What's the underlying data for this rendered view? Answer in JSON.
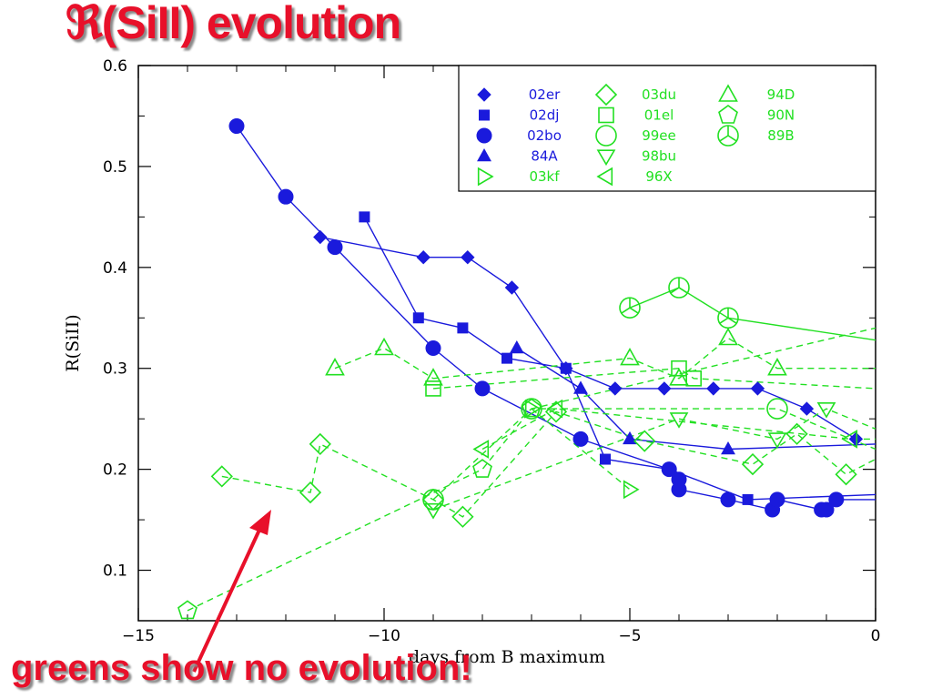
{
  "slide": {
    "title": "ℜ(SiII) evolution",
    "caption": "greens show no evolution!"
  },
  "colors": {
    "blue": "#1a1adc",
    "green": "#22e022",
    "annotation": "#e8102a"
  },
  "chart_data": {
    "type": "scatter",
    "xlabel": "days from B maximum",
    "ylabel": "R(SiII)",
    "xlim": [
      -15,
      0
    ],
    "ylim": [
      0.05,
      0.6
    ],
    "xticks": [
      -15,
      -10,
      -5,
      0
    ],
    "yticks": [
      0.1,
      0.2,
      0.3,
      0.4,
      0.5,
      0.6
    ],
    "grid": false,
    "legend_position": "top-right",
    "series": [
      {
        "name": "02er",
        "group": "blue",
        "marker": "diamond-filled",
        "dash": false,
        "points": [
          [
            -11.3,
            0.43
          ],
          [
            -9.2,
            0.41
          ],
          [
            -8.3,
            0.41
          ],
          [
            -7.4,
            0.38
          ],
          [
            -6.3,
            0.3
          ],
          [
            -5.3,
            0.28
          ],
          [
            -4.3,
            0.28
          ],
          [
            -3.3,
            0.28
          ],
          [
            -2.4,
            0.28
          ],
          [
            -1.4,
            0.26
          ],
          [
            -0.4,
            0.23
          ]
        ]
      },
      {
        "name": "02dj",
        "group": "blue",
        "marker": "square-filled",
        "dash": false,
        "points": [
          [
            -10.4,
            0.45
          ],
          [
            -9.3,
            0.35
          ],
          [
            -8.4,
            0.34
          ],
          [
            -7.5,
            0.31
          ],
          [
            -6.3,
            0.3
          ],
          [
            -5.5,
            0.21
          ],
          [
            -4.2,
            0.2
          ],
          [
            -2.6,
            0.17
          ],
          [
            0,
            0.175
          ]
        ]
      },
      {
        "name": "02bo",
        "group": "blue",
        "marker": "circle-filled",
        "dash": false,
        "points": [
          [
            -13.0,
            0.54
          ],
          [
            -12.0,
            0.47
          ],
          [
            -11.0,
            0.42
          ],
          [
            -9.0,
            0.32
          ],
          [
            -8.0,
            0.28
          ],
          [
            -6.0,
            0.23
          ],
          [
            -4.2,
            0.2
          ],
          [
            -4.0,
            0.19
          ],
          [
            -4.0,
            0.18
          ],
          [
            -3.0,
            0.17
          ],
          [
            -2.1,
            0.16
          ],
          [
            -2.0,
            0.17
          ],
          [
            -1.1,
            0.16
          ],
          [
            -1.0,
            0.16
          ],
          [
            -0.8,
            0.17
          ],
          [
            0,
            0.17
          ]
        ]
      },
      {
        "name": "84A",
        "group": "blue",
        "marker": "triangle-filled",
        "dash": false,
        "points": [
          [
            -7.3,
            0.32
          ],
          [
            -6.0,
            0.28
          ],
          [
            -5.0,
            0.23
          ],
          [
            -3.0,
            0.22
          ],
          [
            0,
            0.225
          ]
        ]
      },
      {
        "name": "03kf",
        "group": "green",
        "marker": "triangle-right-open",
        "dash": true,
        "points": [
          [
            -7.0,
            0.26
          ],
          [
            -5.0,
            0.18
          ]
        ]
      },
      {
        "name": "03du",
        "group": "green",
        "marker": "diamond-open",
        "dash": true,
        "points": [
          [
            -13.3,
            0.193
          ],
          [
            -11.5,
            0.177
          ],
          [
            -11.3,
            0.225
          ],
          [
            -9.0,
            0.17
          ],
          [
            -8.4,
            0.153
          ],
          [
            -6.5,
            0.257
          ],
          [
            -4.7,
            0.228
          ],
          [
            -2.5,
            0.205
          ],
          [
            -1.6,
            0.235
          ],
          [
            -0.6,
            0.195
          ],
          [
            0,
            0.21
          ]
        ]
      },
      {
        "name": "01el",
        "group": "green",
        "marker": "square-open",
        "dash": true,
        "points": [
          [
            -9.0,
            0.28
          ],
          [
            -4.0,
            0.3
          ],
          [
            -3.7,
            0.29
          ],
          [
            0,
            0.28
          ]
        ]
      },
      {
        "name": "99ee",
        "group": "green",
        "marker": "circle-open",
        "dash": true,
        "points": [
          [
            -9.0,
            0.17
          ],
          [
            -7.0,
            0.26
          ],
          [
            -2.0,
            0.26
          ],
          [
            0,
            0.22
          ]
        ]
      },
      {
        "name": "98bu",
        "group": "green",
        "marker": "triangle-down-open",
        "dash": true,
        "points": [
          [
            -9.0,
            0.16
          ],
          [
            -4.0,
            0.25
          ],
          [
            -2.0,
            0.23
          ],
          [
            -1.0,
            0.26
          ],
          [
            0,
            0.24
          ]
        ]
      },
      {
        "name": "96X",
        "group": "green",
        "marker": "triangle-left-open",
        "dash": true,
        "points": [
          [
            -8.0,
            0.22
          ],
          [
            -6.5,
            0.26
          ],
          [
            -0.5,
            0.23
          ],
          [
            0,
            0.23
          ]
        ]
      },
      {
        "name": "94D",
        "group": "green",
        "marker": "triangle-up-open",
        "dash": true,
        "points": [
          [
            -11.0,
            0.3
          ],
          [
            -10.0,
            0.32
          ],
          [
            -9.0,
            0.29
          ],
          [
            -5.0,
            0.31
          ],
          [
            -4.0,
            0.29
          ],
          [
            -3.0,
            0.33
          ],
          [
            -2.0,
            0.3
          ],
          [
            0,
            0.3
          ]
        ]
      },
      {
        "name": "90N",
        "group": "green",
        "marker": "pentagon-open",
        "dash": true,
        "points": [
          [
            -14.0,
            0.06
          ],
          [
            -8.0,
            0.2
          ],
          [
            -7.0,
            0.26
          ],
          [
            0,
            0.34
          ]
        ]
      },
      {
        "name": "89B",
        "group": "green",
        "marker": "peace-open",
        "dash": false,
        "points": [
          [
            -5.0,
            0.36
          ],
          [
            -4.0,
            0.38
          ],
          [
            -3.0,
            0.35
          ],
          [
            0,
            0.328
          ]
        ]
      }
    ]
  }
}
